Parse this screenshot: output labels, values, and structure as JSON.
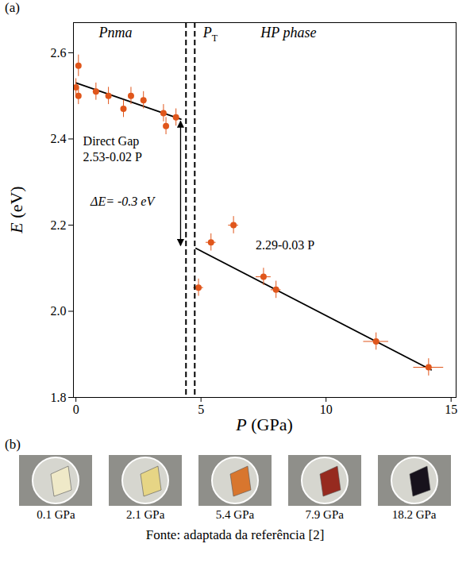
{
  "chart_data": {
    "type": "scatter",
    "panel_label": "(a)",
    "xlabel": "P (GPa)",
    "ylabel": "E (eV)",
    "xlim": [
      -0.1,
      15.2
    ],
    "xticks": [
      0,
      5,
      10,
      15
    ],
    "ylim": [
      1.8,
      2.67
    ],
    "yticks": [
      1.8,
      {
        "value": 2,
        "label": "2.0"
      },
      2.2,
      2.4,
      2.6
    ],
    "grid": false,
    "points": {
      "color": "#e0561b",
      "marker": "circle",
      "x": [
        0,
        0.1,
        0.1,
        0.8,
        1.3,
        1.9,
        2.2,
        2.7,
        3.5,
        3.6,
        4.0,
        4.9,
        5.4,
        6.3,
        7.5,
        8.0,
        12.0,
        14.1
      ],
      "values": [
        2.52,
        2.57,
        2.5,
        2.51,
        2.5,
        2.47,
        2.5,
        2.49,
        2.46,
        2.43,
        2.45,
        2.055,
        2.16,
        2.2,
        2.08,
        2.05,
        1.93,
        1.87
      ],
      "y_error": [
        0.02,
        0.025,
        0.02,
        0.02,
        0.02,
        0.02,
        0.02,
        0.02,
        0.02,
        0.02,
        0.02,
        0.02,
        0.02,
        0.02,
        0.02,
        0.02,
        0.02,
        0.02
      ],
      "x_error": [
        null,
        null,
        null,
        null,
        null,
        null,
        null,
        null,
        null,
        null,
        null,
        0.2,
        0.2,
        0.2,
        0.3,
        0.2,
        0.5,
        0.6
      ]
    },
    "fits": [
      {
        "type": "line",
        "color": "#000000",
        "x": [
          0,
          4.2
        ],
        "values": [
          2.53,
          2.446
        ]
      },
      {
        "type": "line",
        "color": "#000000",
        "x": [
          4.8,
          14.2
        ],
        "values": [
          2.146,
          1.864
        ]
      }
    ],
    "transition": {
      "x": [
        4.4,
        4.75
      ],
      "line_style": "dashed",
      "color": "#000000"
    },
    "annotations": [
      {
        "text": "Pnma",
        "style": "italic"
      },
      {
        "text": "P",
        "subscript": "T",
        "style": "italic"
      },
      {
        "text": "HP phase",
        "style": "italic"
      },
      {
        "text": "Direct Gap",
        "style": "normal"
      },
      {
        "text": "2.53-0.02 P",
        "style": "normal"
      },
      {
        "text": "ΔE= -0.3 eV",
        "style": "italic"
      },
      {
        "text": "2.29-0.03 P",
        "style": "normal"
      }
    ]
  },
  "figure": {
    "panel_b": {
      "label": "(b)",
      "captions": [
        "0.1 GPa",
        "2.1 GPa",
        "5.4 GPa",
        "7.9 GPa",
        "18.2 GPa"
      ]
    },
    "source": "Fonte: adaptada da referência [2]"
  }
}
